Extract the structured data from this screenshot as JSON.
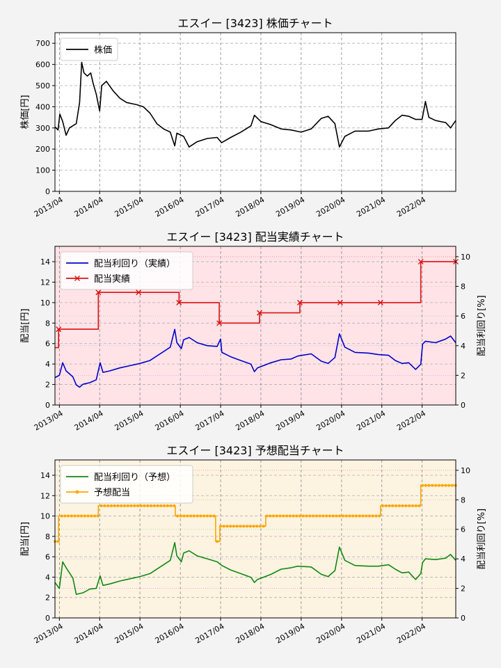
{
  "colors": {
    "background": "#f3f3f3",
    "price": "#000000",
    "actual_yield": "#0000cc",
    "actual_dividend": "#dd1111",
    "forecast_yield": "#118811",
    "forecast_dividend": "#ffa500",
    "actual_fill": "#ffe3e7",
    "forecast_fill": "#fdf3e1"
  },
  "chart_data": [
    {
      "type": "line",
      "title": "エスイー [3423]  株価チャート",
      "ylabel": "株価[円]",
      "ylim": [
        0,
        750
      ],
      "yticks": [
        0,
        100,
        200,
        300,
        400,
        500,
        600,
        700
      ],
      "xlim": [
        "2013-02-20",
        "2023-01-31"
      ],
      "xticks": [
        "2013/04",
        "2014/04",
        "2015/04",
        "2016/04",
        "2017/04",
        "2018/04",
        "2019/04",
        "2020/04",
        "2021/04",
        "2022/04"
      ],
      "legend": "upper-left",
      "grid": true,
      "series": [
        {
          "name": "株価",
          "color": "#000000",
          "points": [
            [
              "2013-02-20",
              305
            ],
            [
              "2013-03-20",
              290
            ],
            [
              "2013-04-05",
              365
            ],
            [
              "2013-05-01",
              330
            ],
            [
              "2013-06-01",
              265
            ],
            [
              "2013-07-01",
              300
            ],
            [
              "2013-09-01",
              320
            ],
            [
              "2013-10-01",
              420
            ],
            [
              "2013-10-20",
              610
            ],
            [
              "2013-11-10",
              560
            ],
            [
              "2013-12-10",
              545
            ],
            [
              "2014-01-10",
              560
            ],
            [
              "2014-02-01",
              510
            ],
            [
              "2014-03-01",
              460
            ],
            [
              "2014-04-01",
              380
            ],
            [
              "2014-04-20",
              500
            ],
            [
              "2014-06-01",
              520
            ],
            [
              "2014-08-01",
              475
            ],
            [
              "2014-10-01",
              440
            ],
            [
              "2014-12-01",
              420
            ],
            [
              "2015-03-01",
              410
            ],
            [
              "2015-05-01",
              400
            ],
            [
              "2015-07-01",
              370
            ],
            [
              "2015-09-01",
              320
            ],
            [
              "2015-11-01",
              295
            ],
            [
              "2016-01-01",
              280
            ],
            [
              "2016-02-10",
              215
            ],
            [
              "2016-03-01",
              275
            ],
            [
              "2016-05-01",
              260
            ],
            [
              "2016-06-20",
              210
            ],
            [
              "2016-09-01",
              235
            ],
            [
              "2016-12-01",
              250
            ],
            [
              "2017-03-01",
              255
            ],
            [
              "2017-04-10",
              230
            ],
            [
              "2017-07-01",
              255
            ],
            [
              "2017-10-01",
              280
            ],
            [
              "2018-01-01",
              310
            ],
            [
              "2018-02-01",
              360
            ],
            [
              "2018-04-01",
              330
            ],
            [
              "2018-07-01",
              315
            ],
            [
              "2018-10-01",
              295
            ],
            [
              "2019-01-01",
              290
            ],
            [
              "2019-04-01",
              280
            ],
            [
              "2019-07-01",
              295
            ],
            [
              "2019-10-01",
              345
            ],
            [
              "2019-12-01",
              355
            ],
            [
              "2020-02-01",
              320
            ],
            [
              "2020-03-13",
              210
            ],
            [
              "2020-05-01",
              260
            ],
            [
              "2020-08-01",
              285
            ],
            [
              "2020-12-01",
              285
            ],
            [
              "2021-03-01",
              295
            ],
            [
              "2021-06-01",
              300
            ],
            [
              "2021-08-01",
              335
            ],
            [
              "2021-10-01",
              360
            ],
            [
              "2021-12-01",
              355
            ],
            [
              "2022-02-01",
              340
            ],
            [
              "2022-04-01",
              340
            ],
            [
              "2022-05-01",
              425
            ],
            [
              "2022-06-01",
              350
            ],
            [
              "2022-08-01",
              335
            ],
            [
              "2022-11-01",
              325
            ],
            [
              "2022-12-15",
              300
            ],
            [
              "2023-01-31",
              335
            ]
          ]
        }
      ]
    },
    {
      "type": "line",
      "title": "エスイー [3423]  配当実績チャート",
      "ylabel": "配当[円]",
      "y2label": "配当利回り[%]",
      "ylim": [
        0,
        15.5
      ],
      "yticks": [
        0,
        2,
        4,
        6,
        8,
        10,
        12,
        14
      ],
      "y2lim": [
        0,
        10.7
      ],
      "y2ticks": [
        0,
        2,
        4,
        6,
        8,
        10
      ],
      "xlim": [
        "2013-02-20",
        "2023-01-31"
      ],
      "xticks": [
        "2013/04",
        "2014/04",
        "2015/04",
        "2016/04",
        "2017/04",
        "2018/04",
        "2019/04",
        "2020/04",
        "2021/04",
        "2022/04"
      ],
      "legend": "upper-left",
      "grid": true,
      "series": [
        {
          "name": "配当利回り（実績）",
          "axis": "right",
          "color": "#0000cc",
          "points": [
            [
              "2013-02-20",
              1.85
            ],
            [
              "2013-04-01",
              2.0
            ],
            [
              "2013-05-01",
              2.85
            ],
            [
              "2013-06-01",
              2.3
            ],
            [
              "2013-08-01",
              1.9
            ],
            [
              "2013-09-01",
              1.35
            ],
            [
              "2013-10-01",
              1.2
            ],
            [
              "2013-11-01",
              1.4
            ],
            [
              "2014-01-01",
              1.5
            ],
            [
              "2014-03-01",
              1.7
            ],
            [
              "2014-04-05",
              2.85
            ],
            [
              "2014-05-01",
              2.2
            ],
            [
              "2014-07-01",
              2.3
            ],
            [
              "2014-10-01",
              2.5
            ],
            [
              "2015-01-01",
              2.65
            ],
            [
              "2015-04-01",
              2.8
            ],
            [
              "2015-07-01",
              3.0
            ],
            [
              "2015-10-01",
              3.45
            ],
            [
              "2016-01-01",
              3.9
            ],
            [
              "2016-02-10",
              5.1
            ],
            [
              "2016-03-01",
              4.2
            ],
            [
              "2016-04-10",
              3.8
            ],
            [
              "2016-05-01",
              4.4
            ],
            [
              "2016-06-20",
              4.55
            ],
            [
              "2016-09-01",
              4.2
            ],
            [
              "2016-12-01",
              4.0
            ],
            [
              "2017-03-01",
              3.95
            ],
            [
              "2017-04-01",
              4.45
            ],
            [
              "2017-04-12",
              3.55
            ],
            [
              "2017-07-01",
              3.25
            ],
            [
              "2017-10-01",
              3.0
            ],
            [
              "2018-01-01",
              2.75
            ],
            [
              "2018-02-01",
              2.25
            ],
            [
              "2018-03-01",
              2.5
            ],
            [
              "2018-07-01",
              2.85
            ],
            [
              "2018-10-01",
              3.05
            ],
            [
              "2019-01-01",
              3.1
            ],
            [
              "2019-03-01",
              3.3
            ],
            [
              "2019-07-01",
              3.45
            ],
            [
              "2019-10-01",
              2.95
            ],
            [
              "2019-12-01",
              2.8
            ],
            [
              "2020-02-01",
              3.2
            ],
            [
              "2020-03-13",
              4.8
            ],
            [
              "2020-05-01",
              3.9
            ],
            [
              "2020-08-01",
              3.55
            ],
            [
              "2020-12-01",
              3.5
            ],
            [
              "2021-03-01",
              3.4
            ],
            [
              "2021-06-01",
              3.35
            ],
            [
              "2021-08-01",
              3.0
            ],
            [
              "2021-10-01",
              2.8
            ],
            [
              "2021-12-01",
              2.85
            ],
            [
              "2022-02-01",
              2.4
            ],
            [
              "2022-03-20",
              2.75
            ],
            [
              "2022-04-05",
              4.1
            ],
            [
              "2022-05-01",
              4.3
            ],
            [
              "2022-08-01",
              4.2
            ],
            [
              "2022-11-01",
              4.45
            ],
            [
              "2022-12-15",
              4.65
            ],
            [
              "2023-01-31",
              4.2
            ]
          ]
        },
        {
          "name": "配当実績",
          "axis": "left",
          "step": true,
          "color": "#dd1111",
          "points": [
            [
              "2013-02-20",
              5.6
            ],
            [
              "2013-03-25",
              7.4
            ],
            [
              "2014-03-20",
              11
            ],
            [
              "2015-03-20",
              11
            ],
            [
              "2016-03-20",
              10
            ],
            [
              "2017-03-20",
              8
            ],
            [
              "2018-03-20",
              9
            ],
            [
              "2019-03-20",
              10
            ],
            [
              "2020-03-20",
              10
            ],
            [
              "2021-03-20",
              10
            ],
            [
              "2022-03-20",
              14
            ],
            [
              "2023-01-31",
              14
            ]
          ]
        }
      ]
    },
    {
      "type": "line",
      "title": "エスイー [3423]  予想配当チャート",
      "ylabel": "配当[円]",
      "y2label": "配当利回り[%]",
      "ylim": [
        0,
        15.5
      ],
      "yticks": [
        0,
        2,
        4,
        6,
        8,
        10,
        12,
        14
      ],
      "y2lim": [
        0,
        10.7
      ],
      "y2ticks": [
        0,
        2,
        4,
        6,
        8,
        10
      ],
      "xlim": [
        "2013-02-20",
        "2023-01-31"
      ],
      "xticks": [
        "2013/04",
        "2014/04",
        "2015/04",
        "2016/04",
        "2017/04",
        "2018/04",
        "2019/04",
        "2020/04",
        "2021/04",
        "2022/04"
      ],
      "legend": "upper-left",
      "grid": true,
      "series": [
        {
          "name": "配当利回り（予想）",
          "axis": "right",
          "color": "#118811",
          "points": [
            [
              "2013-02-20",
              2.4
            ],
            [
              "2013-04-01",
              2.0
            ],
            [
              "2013-05-01",
              3.8
            ],
            [
              "2013-06-01",
              3.4
            ],
            [
              "2013-08-01",
              2.7
            ],
            [
              "2013-09-01",
              1.6
            ],
            [
              "2013-11-01",
              1.7
            ],
            [
              "2014-01-01",
              1.95
            ],
            [
              "2014-03-01",
              2.0
            ],
            [
              "2014-04-05",
              2.85
            ],
            [
              "2014-05-01",
              2.2
            ],
            [
              "2014-07-01",
              2.3
            ],
            [
              "2014-10-01",
              2.5
            ],
            [
              "2015-01-01",
              2.65
            ],
            [
              "2015-04-01",
              2.8
            ],
            [
              "2015-07-01",
              3.0
            ],
            [
              "2015-10-01",
              3.45
            ],
            [
              "2016-01-01",
              3.9
            ],
            [
              "2016-02-10",
              5.1
            ],
            [
              "2016-03-01",
              4.2
            ],
            [
              "2016-04-10",
              3.8
            ],
            [
              "2016-05-01",
              4.4
            ],
            [
              "2016-06-20",
              4.55
            ],
            [
              "2016-09-01",
              4.2
            ],
            [
              "2016-12-01",
              4.0
            ],
            [
              "2017-03-01",
              3.8
            ],
            [
              "2017-04-12",
              3.55
            ],
            [
              "2017-07-01",
              3.25
            ],
            [
              "2017-10-01",
              3.0
            ],
            [
              "2018-01-01",
              2.75
            ],
            [
              "2018-02-01",
              2.4
            ],
            [
              "2018-03-01",
              2.6
            ],
            [
              "2018-07-01",
              2.95
            ],
            [
              "2018-10-01",
              3.3
            ],
            [
              "2019-01-01",
              3.4
            ],
            [
              "2019-03-01",
              3.5
            ],
            [
              "2019-07-01",
              3.45
            ],
            [
              "2019-10-01",
              2.95
            ],
            [
              "2019-12-01",
              2.8
            ],
            [
              "2020-02-01",
              3.2
            ],
            [
              "2020-03-13",
              4.8
            ],
            [
              "2020-05-01",
              3.9
            ],
            [
              "2020-08-01",
              3.55
            ],
            [
              "2020-12-01",
              3.5
            ],
            [
              "2021-03-01",
              3.5
            ],
            [
              "2021-06-01",
              3.6
            ],
            [
              "2021-08-01",
              3.3
            ],
            [
              "2021-10-01",
              3.05
            ],
            [
              "2021-12-01",
              3.1
            ],
            [
              "2022-02-01",
              2.6
            ],
            [
              "2022-03-20",
              3.0
            ],
            [
              "2022-04-05",
              3.75
            ],
            [
              "2022-05-01",
              4.0
            ],
            [
              "2022-08-01",
              3.95
            ],
            [
              "2022-11-01",
              4.05
            ],
            [
              "2022-12-15",
              4.3
            ],
            [
              "2023-01-31",
              3.9
            ]
          ]
        },
        {
          "name": "予想配当",
          "axis": "left",
          "step": true,
          "color": "#ffa500",
          "points": [
            [
              "2013-02-20",
              7.5
            ],
            [
              "2013-03-25",
              10
            ],
            [
              "2014-03-20",
              11
            ],
            [
              "2016-02-15",
              10
            ],
            [
              "2017-02-15",
              7.5
            ],
            [
              "2017-03-25",
              9
            ],
            [
              "2018-05-15",
              10
            ],
            [
              "2021-03-20",
              11
            ],
            [
              "2022-03-20",
              13
            ],
            [
              "2023-01-31",
              13
            ]
          ]
        }
      ]
    }
  ]
}
